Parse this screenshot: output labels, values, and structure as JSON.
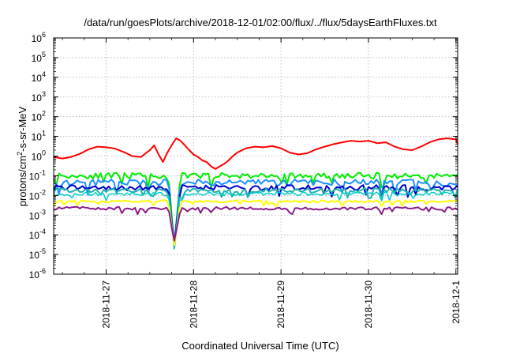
{
  "chart_data": {
    "type": "line",
    "title": "/data/run/goesPlots/archive/2018-12-01/02:00/flux/../flux/5daysEarthFluxes.txt",
    "xlabel": "Coordinated Universal Time (UTC)",
    "ylabel_parts": [
      "protons/cm",
      "2",
      "-s-sr-MeV"
    ],
    "yscale": "log",
    "ylim_exp": [
      -6,
      6
    ],
    "y_ticks": [
      {
        "exp": "-6"
      },
      {
        "exp": "-5"
      },
      {
        "exp": "-4"
      },
      {
        "exp": "-3"
      },
      {
        "exp": "-2"
      },
      {
        "exp": "-1"
      },
      {
        "exp": "0"
      },
      {
        "exp": "1"
      },
      {
        "exp": "2"
      },
      {
        "exp": "3"
      },
      {
        "exp": "4"
      },
      {
        "exp": "5"
      },
      {
        "exp": "6"
      }
    ],
    "y_tick_base": "10",
    "xlim_days": [
      -0.6,
      4.02
    ],
    "x_ticks": [
      {
        "label": "2018-11-27",
        "day": 0
      },
      {
        "label": "2018-11-28",
        "day": 1
      },
      {
        "label": "2018-11-29",
        "day": 2
      },
      {
        "label": "2018-11-30",
        "day": 3
      },
      {
        "label": "2018-12-1",
        "day": 4
      }
    ],
    "grid": true,
    "series": [
      {
        "color": "#ff0000",
        "width": 2,
        "points": [
          [
            -0.6,
            0.9
          ],
          [
            -0.5,
            0.75
          ],
          [
            -0.4,
            0.9
          ],
          [
            -0.3,
            1.3
          ],
          [
            -0.2,
            2.2
          ],
          [
            -0.1,
            3.0
          ],
          [
            0.0,
            2.8
          ],
          [
            0.1,
            2.4
          ],
          [
            0.2,
            1.6
          ],
          [
            0.3,
            1.0
          ],
          [
            0.4,
            0.9
          ],
          [
            0.5,
            2.0
          ],
          [
            0.55,
            3.5
          ],
          [
            0.6,
            1.2
          ],
          [
            0.65,
            0.5
          ],
          [
            0.7,
            1.5
          ],
          [
            0.75,
            3.5
          ],
          [
            0.8,
            8.0
          ],
          [
            0.85,
            6.0
          ],
          [
            0.9,
            3.5
          ],
          [
            0.95,
            2.0
          ],
          [
            1.0,
            1.2
          ],
          [
            1.05,
            0.9
          ],
          [
            1.1,
            0.6
          ],
          [
            1.15,
            0.5
          ],
          [
            1.2,
            0.3
          ],
          [
            1.25,
            0.22
          ],
          [
            1.3,
            0.3
          ],
          [
            1.35,
            0.4
          ],
          [
            1.4,
            0.6
          ],
          [
            1.45,
            1.0
          ],
          [
            1.5,
            1.5
          ],
          [
            1.6,
            2.5
          ],
          [
            1.7,
            3.0
          ],
          [
            1.8,
            2.8
          ],
          [
            1.9,
            3.2
          ],
          [
            2.0,
            2.5
          ],
          [
            2.1,
            1.5
          ],
          [
            2.2,
            1.2
          ],
          [
            2.3,
            1.4
          ],
          [
            2.4,
            2.2
          ],
          [
            2.5,
            3.0
          ],
          [
            2.6,
            4.0
          ],
          [
            2.7,
            5.0
          ],
          [
            2.8,
            6.0
          ],
          [
            2.9,
            5.5
          ],
          [
            3.0,
            6.0
          ],
          [
            3.1,
            4.5
          ],
          [
            3.2,
            5.0
          ],
          [
            3.3,
            3.0
          ],
          [
            3.4,
            2.2
          ],
          [
            3.5,
            2.0
          ],
          [
            3.6,
            3.0
          ],
          [
            3.7,
            5.0
          ],
          [
            3.8,
            7.0
          ],
          [
            3.9,
            8.0
          ],
          [
            4.0,
            7.0
          ],
          [
            4.02,
            4.0
          ]
        ]
      },
      {
        "color": "#00ee00",
        "width": 2,
        "base": 0.1,
        "amp": 0.5,
        "seed": 11
      },
      {
        "color": "#1e90ff",
        "width": 2,
        "base": 0.045,
        "amp": 0.55,
        "seed": 23
      },
      {
        "color": "#0000cd",
        "width": 2,
        "base": 0.025,
        "amp": 0.45,
        "seed": 37
      },
      {
        "color": "#20b2aa",
        "width": 2,
        "base": 0.018,
        "amp": 0.35,
        "seed": 41
      },
      {
        "color": "#00cdcd",
        "width": 1.5,
        "base": 0.012,
        "amp": 0.3,
        "seed": 53
      },
      {
        "color": "#ffff00",
        "width": 2,
        "base": 0.005,
        "amp": 0.2,
        "seed": 61
      },
      {
        "color": "#8b1a8b",
        "width": 2,
        "base": 0.0022,
        "amp": 0.25,
        "seed": 73
      }
    ],
    "dip": {
      "day": 0.78,
      "min": [
        3e-05,
        4e-05,
        3e-05,
        2e-05,
        3e-05,
        3e-05,
        5e-05,
        8e-06
      ]
    }
  }
}
